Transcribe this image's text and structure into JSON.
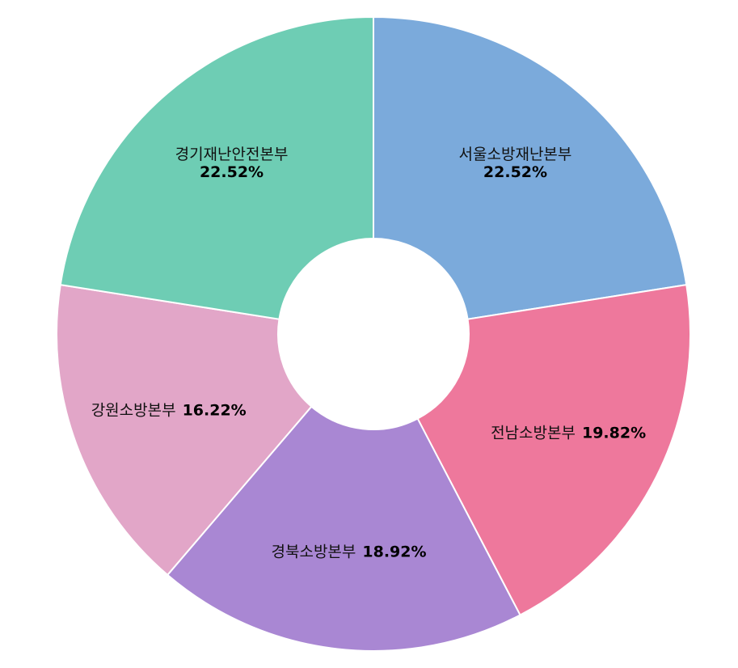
{
  "chart_data": {
    "type": "pie",
    "variant": "donut",
    "title": "",
    "legend": "none",
    "slices": [
      {
        "label": "서울소방재난본부",
        "value": 22.52,
        "pct_label": "22.52%",
        "color": "#7BAADB",
        "label_layout": "stacked"
      },
      {
        "label": "전남소방본부",
        "value": 19.82,
        "pct_label": "19.82%",
        "color": "#EE789C",
        "label_layout": "inline"
      },
      {
        "label": "경북소방본부",
        "value": 18.92,
        "pct_label": "18.92%",
        "color": "#A987D3",
        "label_layout": "inline"
      },
      {
        "label": "강원소방본부",
        "value": 16.22,
        "pct_label": "16.22%",
        "color": "#E2A6C8",
        "label_layout": "inline"
      },
      {
        "label": "경기재난안전본부",
        "value": 22.52,
        "pct_label": "22.52%",
        "color": "#6ECDB4",
        "label_layout": "stacked"
      }
    ]
  }
}
